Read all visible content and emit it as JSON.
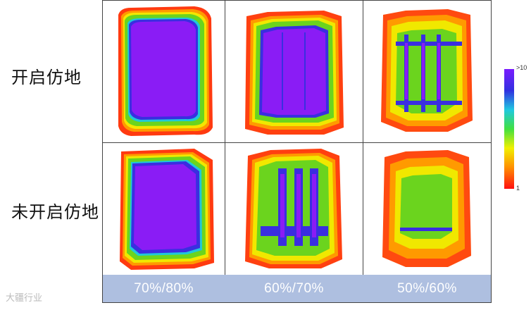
{
  "row_labels": [
    "开启仿地",
    "未开启仿地"
  ],
  "column_labels": [
    "70%/80%",
    "60%/70%",
    "50%/60%"
  ],
  "colorbar": {
    "max_label": ">10",
    "min_label": "1",
    "colors": [
      "#7a1cff",
      "#3030e0",
      "#20c8e0",
      "#40e040",
      "#f0f000",
      "#ff9000",
      "#ff1010"
    ]
  },
  "watermark": "大疆行业"
}
